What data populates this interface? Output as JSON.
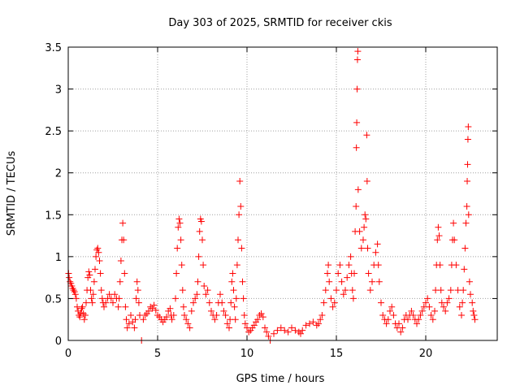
{
  "chart_data": {
    "type": "scatter",
    "title": "Day 303 of 2025, SRMTID for receiver ckis",
    "xlabel": "GPS time / hours",
    "ylabel": "SRMTID / TECUs",
    "xlim": [
      0,
      24
    ],
    "ylim": [
      0,
      3.5
    ],
    "grid": true,
    "marker": "plus",
    "color": "#ff0000",
    "xticks": [
      {
        "value": 0,
        "label": "0"
      },
      {
        "value": 5,
        "label": "5"
      },
      {
        "value": 10,
        "label": "10"
      },
      {
        "value": 15,
        "label": "15"
      },
      {
        "value": 20,
        "label": "20"
      }
    ],
    "yticks": [
      {
        "value": 0,
        "label": "0"
      },
      {
        "value": 0.5,
        "label": "0.5"
      },
      {
        "value": 1,
        "label": "1"
      },
      {
        "value": 1.5,
        "label": "1.5"
      },
      {
        "value": 2,
        "label": "2"
      },
      {
        "value": 2.5,
        "label": "2.5"
      },
      {
        "value": 3,
        "label": "3"
      },
      {
        "value": 3.5,
        "label": "3.5"
      }
    ],
    "series": [
      {
        "name": "SRMTID",
        "points": [
          [
            0.02,
            0.8
          ],
          [
            0.05,
            0.75
          ],
          [
            0.1,
            0.7
          ],
          [
            0.15,
            0.68
          ],
          [
            0.2,
            0.65
          ],
          [
            0.25,
            0.62
          ],
          [
            0.3,
            0.6
          ],
          [
            0.35,
            0.58
          ],
          [
            0.4,
            0.55
          ],
          [
            0.45,
            0.5
          ],
          [
            0.5,
            0.4
          ],
          [
            0.55,
            0.35
          ],
          [
            0.6,
            0.3
          ],
          [
            0.65,
            0.28
          ],
          [
            0.7,
            0.33
          ],
          [
            0.75,
            0.38
          ],
          [
            0.8,
            0.4
          ],
          [
            0.85,
            0.32
          ],
          [
            0.9,
            0.25
          ],
          [
            0.95,
            0.3
          ],
          [
            1.0,
            0.45
          ],
          [
            1.05,
            0.6
          ],
          [
            1.1,
            0.75
          ],
          [
            1.15,
            0.82
          ],
          [
            1.2,
            0.78
          ],
          [
            1.25,
            0.6
          ],
          [
            1.3,
            0.5
          ],
          [
            1.35,
            0.45
          ],
          [
            1.4,
            0.55
          ],
          [
            1.45,
            0.7
          ],
          [
            1.5,
            0.85
          ],
          [
            1.55,
            1.0
          ],
          [
            1.6,
            1.08
          ],
          [
            1.65,
            1.1
          ],
          [
            1.7,
            1.05
          ],
          [
            1.75,
            0.95
          ],
          [
            1.8,
            0.8
          ],
          [
            1.85,
            0.6
          ],
          [
            1.9,
            0.5
          ],
          [
            1.95,
            0.45
          ],
          [
            2.0,
            0.4
          ],
          [
            2.1,
            0.45
          ],
          [
            2.2,
            0.5
          ],
          [
            2.3,
            0.55
          ],
          [
            2.4,
            0.5
          ],
          [
            2.5,
            0.45
          ],
          [
            2.6,
            0.55
          ],
          [
            2.7,
            0.5
          ],
          [
            2.8,
            0.4
          ],
          [
            2.85,
            0.5
          ],
          [
            2.9,
            0.7
          ],
          [
            2.95,
            0.95
          ],
          [
            3.0,
            1.2
          ],
          [
            3.05,
            1.4
          ],
          [
            3.1,
            1.2
          ],
          [
            3.15,
            0.8
          ],
          [
            3.2,
            0.4
          ],
          [
            3.25,
            0.25
          ],
          [
            3.3,
            0.15
          ],
          [
            3.4,
            0.2
          ],
          [
            3.5,
            0.3
          ],
          [
            3.6,
            0.22
          ],
          [
            3.7,
            0.15
          ],
          [
            3.75,
            0.25
          ],
          [
            3.8,
            0.5
          ],
          [
            3.85,
            0.7
          ],
          [
            3.9,
            0.6
          ],
          [
            3.95,
            0.45
          ],
          [
            4.0,
            0.3
          ],
          [
            4.1,
            0.0
          ],
          [
            4.2,
            0.25
          ],
          [
            4.3,
            0.3
          ],
          [
            4.4,
            0.32
          ],
          [
            4.5,
            0.35
          ],
          [
            4.6,
            0.4
          ],
          [
            4.7,
            0.38
          ],
          [
            4.8,
            0.42
          ],
          [
            4.9,
            0.36
          ],
          [
            5.0,
            0.3
          ],
          [
            5.1,
            0.28
          ],
          [
            5.2,
            0.25
          ],
          [
            5.3,
            0.22
          ],
          [
            5.4,
            0.25
          ],
          [
            5.5,
            0.28
          ],
          [
            5.6,
            0.35
          ],
          [
            5.7,
            0.38
          ],
          [
            5.75,
            0.3
          ],
          [
            5.8,
            0.25
          ],
          [
            5.9,
            0.3
          ],
          [
            6.0,
            0.5
          ],
          [
            6.05,
            0.8
          ],
          [
            6.1,
            1.1
          ],
          [
            6.15,
            1.35
          ],
          [
            6.2,
            1.45
          ],
          [
            6.25,
            1.4
          ],
          [
            6.3,
            1.2
          ],
          [
            6.35,
            0.9
          ],
          [
            6.4,
            0.6
          ],
          [
            6.45,
            0.4
          ],
          [
            6.5,
            0.3
          ],
          [
            6.6,
            0.25
          ],
          [
            6.7,
            0.2
          ],
          [
            6.8,
            0.15
          ],
          [
            6.9,
            0.35
          ],
          [
            7.0,
            0.45
          ],
          [
            7.1,
            0.5
          ],
          [
            7.2,
            0.55
          ],
          [
            7.25,
            0.7
          ],
          [
            7.3,
            1.0
          ],
          [
            7.35,
            1.3
          ],
          [
            7.4,
            1.45
          ],
          [
            7.45,
            1.42
          ],
          [
            7.5,
            1.2
          ],
          [
            7.55,
            0.9
          ],
          [
            7.6,
            0.65
          ],
          [
            7.7,
            0.55
          ],
          [
            7.8,
            0.6
          ],
          [
            7.9,
            0.45
          ],
          [
            8.0,
            0.35
          ],
          [
            8.1,
            0.3
          ],
          [
            8.2,
            0.25
          ],
          [
            8.3,
            0.3
          ],
          [
            8.4,
            0.45
          ],
          [
            8.5,
            0.55
          ],
          [
            8.6,
            0.45
          ],
          [
            8.7,
            0.35
          ],
          [
            8.8,
            0.3
          ],
          [
            8.9,
            0.2
          ],
          [
            9.0,
            0.15
          ],
          [
            9.05,
            0.25
          ],
          [
            9.1,
            0.45
          ],
          [
            9.15,
            0.7
          ],
          [
            9.2,
            0.8
          ],
          [
            9.25,
            0.6
          ],
          [
            9.3,
            0.4
          ],
          [
            9.35,
            0.25
          ],
          [
            9.4,
            0.5
          ],
          [
            9.45,
            0.9
          ],
          [
            9.5,
            1.2
          ],
          [
            9.55,
            1.5
          ],
          [
            9.6,
            1.9
          ],
          [
            9.65,
            1.6
          ],
          [
            9.7,
            1.1
          ],
          [
            9.75,
            0.7
          ],
          [
            9.8,
            0.5
          ],
          [
            9.85,
            0.3
          ],
          [
            9.9,
            0.2
          ],
          [
            10.0,
            0.15
          ],
          [
            10.1,
            0.1
          ],
          [
            10.2,
            0.12
          ],
          [
            10.3,
            0.15
          ],
          [
            10.4,
            0.18
          ],
          [
            10.5,
            0.22
          ],
          [
            10.6,
            0.25
          ],
          [
            10.7,
            0.3
          ],
          [
            10.8,
            0.32
          ],
          [
            10.9,
            0.28
          ],
          [
            11.0,
            0.15
          ],
          [
            11.1,
            0.1
          ],
          [
            11.2,
            0.05
          ],
          [
            11.3,
            0.0
          ],
          [
            11.5,
            0.08
          ],
          [
            11.7,
            0.12
          ],
          [
            11.9,
            0.15
          ],
          [
            12.1,
            0.12
          ],
          [
            12.3,
            0.1
          ],
          [
            12.5,
            0.15
          ],
          [
            12.7,
            0.12
          ],
          [
            12.9,
            0.1
          ],
          [
            13.0,
            0.08
          ],
          [
            13.1,
            0.12
          ],
          [
            13.3,
            0.18
          ],
          [
            13.5,
            0.2
          ],
          [
            13.7,
            0.22
          ],
          [
            13.9,
            0.18
          ],
          [
            14.0,
            0.2
          ],
          [
            14.1,
            0.25
          ],
          [
            14.2,
            0.3
          ],
          [
            14.3,
            0.45
          ],
          [
            14.4,
            0.6
          ],
          [
            14.5,
            0.8
          ],
          [
            14.55,
            0.9
          ],
          [
            14.6,
            0.7
          ],
          [
            14.7,
            0.5
          ],
          [
            14.8,
            0.4
          ],
          [
            14.9,
            0.45
          ],
          [
            15.0,
            0.6
          ],
          [
            15.1,
            0.8
          ],
          [
            15.2,
            0.9
          ],
          [
            15.3,
            0.7
          ],
          [
            15.4,
            0.55
          ],
          [
            15.5,
            0.6
          ],
          [
            15.6,
            0.75
          ],
          [
            15.7,
            0.9
          ],
          [
            15.8,
            1.0
          ],
          [
            15.85,
            0.8
          ],
          [
            15.9,
            0.6
          ],
          [
            15.95,
            0.5
          ],
          [
            16.0,
            0.8
          ],
          [
            16.05,
            1.3
          ],
          [
            16.1,
            1.6
          ],
          [
            16.12,
            2.3
          ],
          [
            16.14,
            2.6
          ],
          [
            16.16,
            3.0
          ],
          [
            16.18,
            3.35
          ],
          [
            16.2,
            3.45
          ],
          [
            16.22,
            1.8
          ],
          [
            16.3,
            1.3
          ],
          [
            16.4,
            1.1
          ],
          [
            16.5,
            1.2
          ],
          [
            16.55,
            1.35
          ],
          [
            16.6,
            1.5
          ],
          [
            16.65,
            1.45
          ],
          [
            16.7,
            2.45
          ],
          [
            16.72,
            1.9
          ],
          [
            16.75,
            1.1
          ],
          [
            16.8,
            0.8
          ],
          [
            16.9,
            0.6
          ],
          [
            17.0,
            0.7
          ],
          [
            17.1,
            0.9
          ],
          [
            17.2,
            1.05
          ],
          [
            17.3,
            1.15
          ],
          [
            17.35,
            0.9
          ],
          [
            17.4,
            0.7
          ],
          [
            17.5,
            0.45
          ],
          [
            17.6,
            0.3
          ],
          [
            17.7,
            0.25
          ],
          [
            17.8,
            0.2
          ],
          [
            17.9,
            0.25
          ],
          [
            18.0,
            0.35
          ],
          [
            18.1,
            0.4
          ],
          [
            18.2,
            0.3
          ],
          [
            18.3,
            0.2
          ],
          [
            18.4,
            0.15
          ],
          [
            18.5,
            0.2
          ],
          [
            18.6,
            0.1
          ],
          [
            18.7,
            0.15
          ],
          [
            18.8,
            0.25
          ],
          [
            18.9,
            0.3
          ],
          [
            19.0,
            0.25
          ],
          [
            19.1,
            0.3
          ],
          [
            19.2,
            0.35
          ],
          [
            19.3,
            0.3
          ],
          [
            19.4,
            0.25
          ],
          [
            19.5,
            0.2
          ],
          [
            19.6,
            0.25
          ],
          [
            19.7,
            0.3
          ],
          [
            19.8,
            0.35
          ],
          [
            19.9,
            0.4
          ],
          [
            20.0,
            0.45
          ],
          [
            20.1,
            0.5
          ],
          [
            20.2,
            0.4
          ],
          [
            20.3,
            0.3
          ],
          [
            20.4,
            0.25
          ],
          [
            20.5,
            0.35
          ],
          [
            20.55,
            0.6
          ],
          [
            20.6,
            0.9
          ],
          [
            20.65,
            1.2
          ],
          [
            20.7,
            1.35
          ],
          [
            20.75,
            1.25
          ],
          [
            20.8,
            0.9
          ],
          [
            20.85,
            0.6
          ],
          [
            20.9,
            0.45
          ],
          [
            21.0,
            0.4
          ],
          [
            21.1,
            0.35
          ],
          [
            21.2,
            0.45
          ],
          [
            21.3,
            0.5
          ],
          [
            21.4,
            0.6
          ],
          [
            21.45,
            0.9
          ],
          [
            21.5,
            1.2
          ],
          [
            21.55,
            1.4
          ],
          [
            21.6,
            1.2
          ],
          [
            21.7,
            0.9
          ],
          [
            21.8,
            0.6
          ],
          [
            21.9,
            0.4
          ],
          [
            22.0,
            0.3
          ],
          [
            22.05,
            0.45
          ],
          [
            22.1,
            0.6
          ],
          [
            22.15,
            0.85
          ],
          [
            22.2,
            1.1
          ],
          [
            22.25,
            1.4
          ],
          [
            22.3,
            1.6
          ],
          [
            22.32,
            1.9
          ],
          [
            22.34,
            2.1
          ],
          [
            22.36,
            2.4
          ],
          [
            22.38,
            2.55
          ],
          [
            22.4,
            1.5
          ],
          [
            22.45,
            0.7
          ],
          [
            22.5,
            0.55
          ],
          [
            22.6,
            0.45
          ],
          [
            22.65,
            0.35
          ],
          [
            22.7,
            0.3
          ],
          [
            22.75,
            0.25
          ]
        ]
      }
    ]
  }
}
